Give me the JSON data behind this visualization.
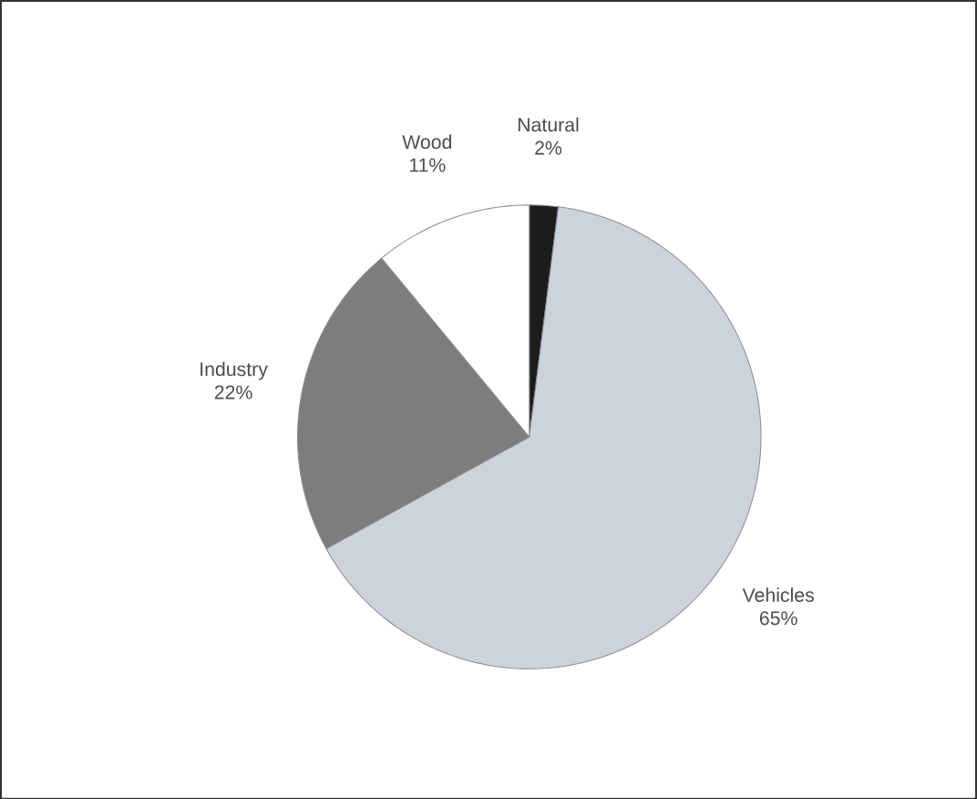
{
  "chart_data": {
    "type": "pie",
    "categories": [
      "Natural",
      "Vehicles",
      "Industry",
      "Wood"
    ],
    "values": [
      2,
      65,
      22,
      11
    ],
    "colors": [
      "#1c1c1c",
      "#cdd3dd",
      "#7d7d7d",
      "#ffffff"
    ],
    "value_labels": [
      "2%",
      "65%",
      "22%",
      "11%"
    ]
  }
}
